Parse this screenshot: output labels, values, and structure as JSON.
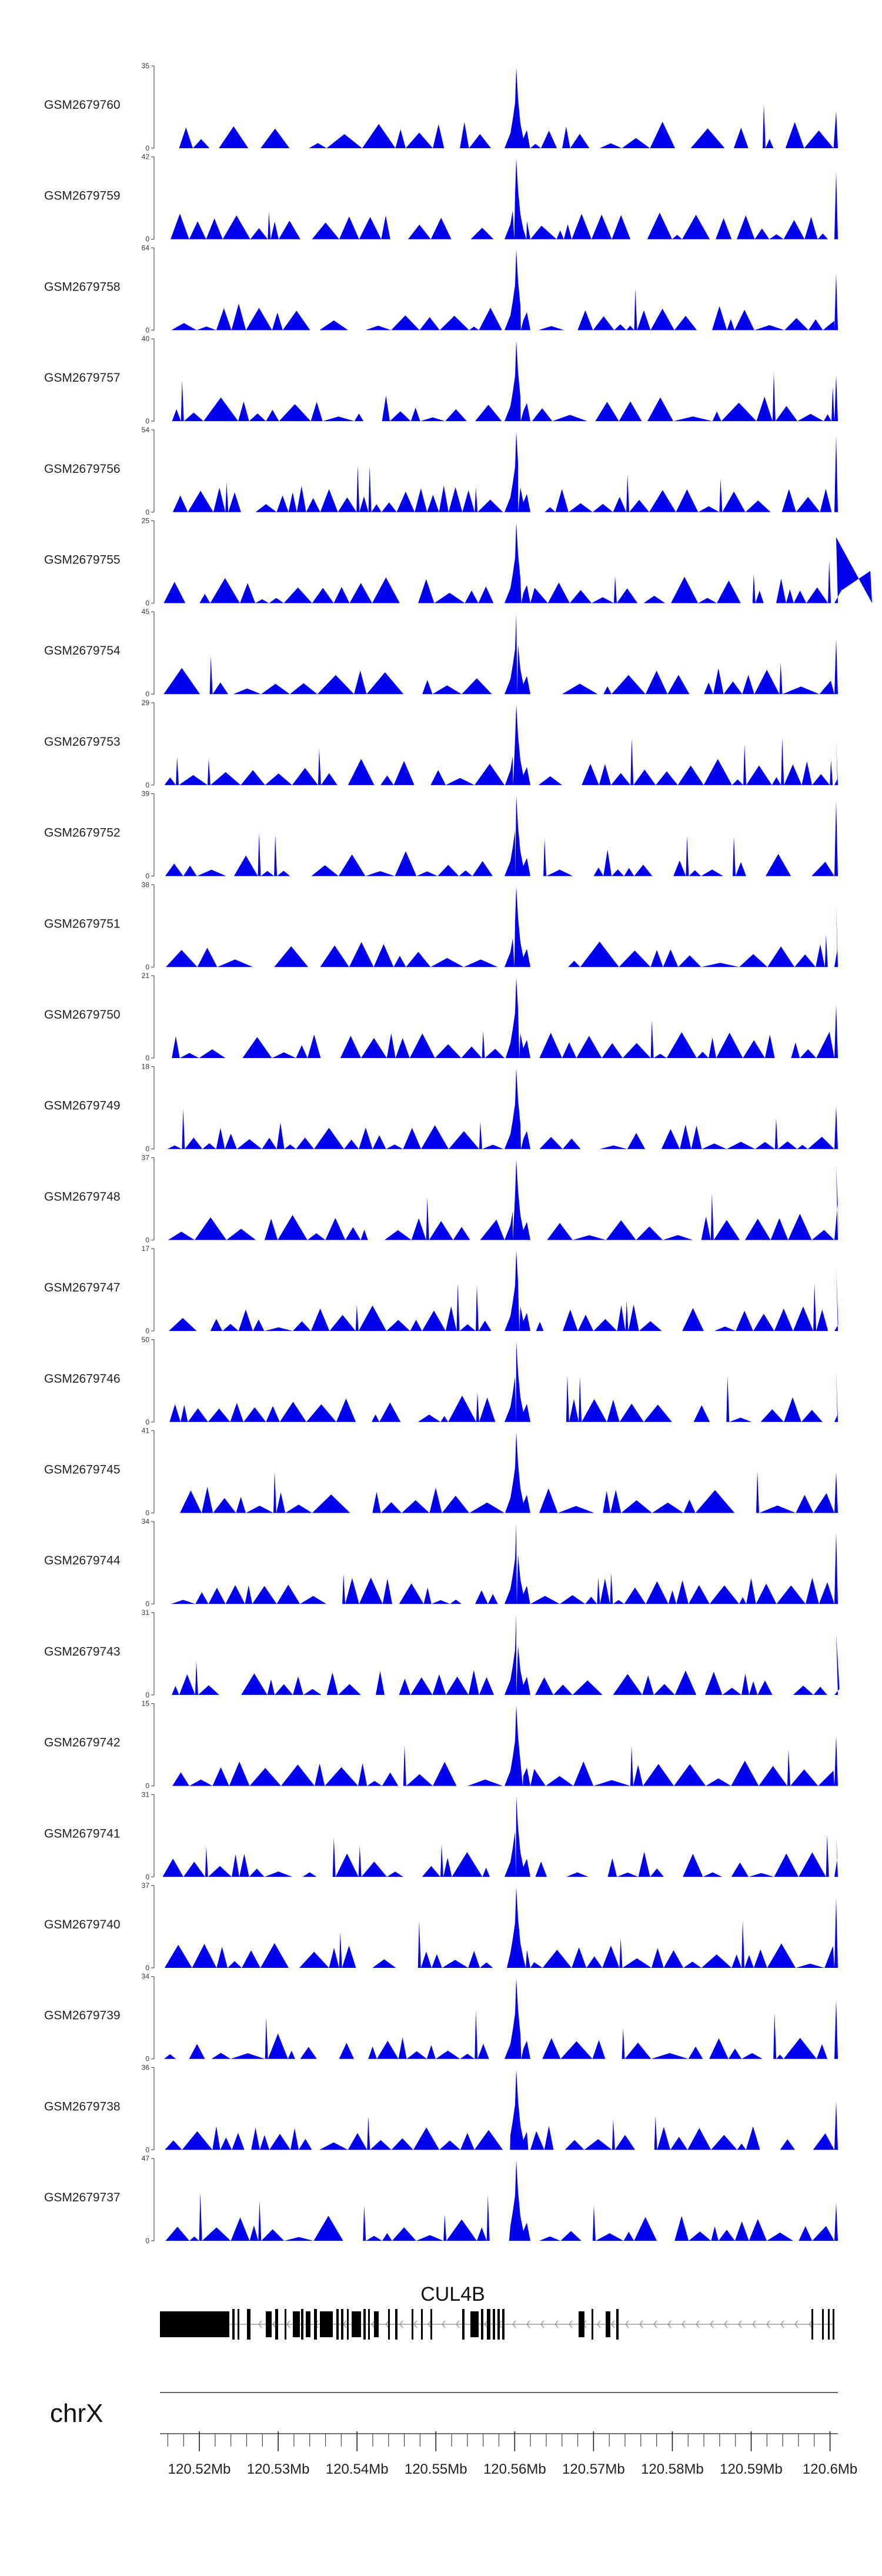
{
  "chart_data": {
    "type": "area",
    "title": "",
    "chromosome": "chrX",
    "gene": "CUL4B",
    "xlim": [
      120.515,
      120.601
    ],
    "xlabel": "",
    "xticks": [
      {
        "value": 120.52,
        "label": "120.52Mb"
      },
      {
        "value": 120.53,
        "label": "120.53Mb"
      },
      {
        "value": 120.54,
        "label": "120.54Mb"
      },
      {
        "value": 120.55,
        "label": "120.55Mb"
      },
      {
        "value": 120.56,
        "label": "120.56Mb"
      },
      {
        "value": 120.57,
        "label": "120.57Mb"
      },
      {
        "value": 120.58,
        "label": "120.58Mb"
      },
      {
        "value": 120.59,
        "label": "120.59Mb"
      },
      {
        "value": 120.6,
        "label": "120.6Mb"
      }
    ],
    "series_color": "#0000ee",
    "series": [
      {
        "name": "GSM2679760",
        "ymax": 35
      },
      {
        "name": "GSM2679759",
        "ymax": 42
      },
      {
        "name": "GSM2679758",
        "ymax": 64
      },
      {
        "name": "GSM2679757",
        "ymax": 40
      },
      {
        "name": "GSM2679756",
        "ymax": 54
      },
      {
        "name": "GSM2679755",
        "ymax": 25
      },
      {
        "name": "GSM2679754",
        "ymax": 45
      },
      {
        "name": "GSM2679753",
        "ymax": 29
      },
      {
        "name": "GSM2679752",
        "ymax": 39
      },
      {
        "name": "GSM2679751",
        "ymax": 38
      },
      {
        "name": "GSM2679750",
        "ymax": 21
      },
      {
        "name": "GSM2679749",
        "ymax": 18
      },
      {
        "name": "GSM2679748",
        "ymax": 37
      },
      {
        "name": "GSM2679747",
        "ymax": 17
      },
      {
        "name": "GSM2679746",
        "ymax": 50
      },
      {
        "name": "GSM2679745",
        "ymax": 41
      },
      {
        "name": "GSM2679744",
        "ymax": 34
      },
      {
        "name": "GSM2679743",
        "ymax": 31
      },
      {
        "name": "GSM2679742",
        "ymax": 15
      },
      {
        "name": "GSM2679741",
        "ymax": 31
      },
      {
        "name": "GSM2679740",
        "ymax": 37
      },
      {
        "name": "GSM2679739",
        "ymax": 34
      },
      {
        "name": "GSM2679738",
        "ymax": 36
      },
      {
        "name": "GSM2679737",
        "ymax": 47
      }
    ],
    "ymin": 0,
    "peak_position": 120.5602
  }
}
